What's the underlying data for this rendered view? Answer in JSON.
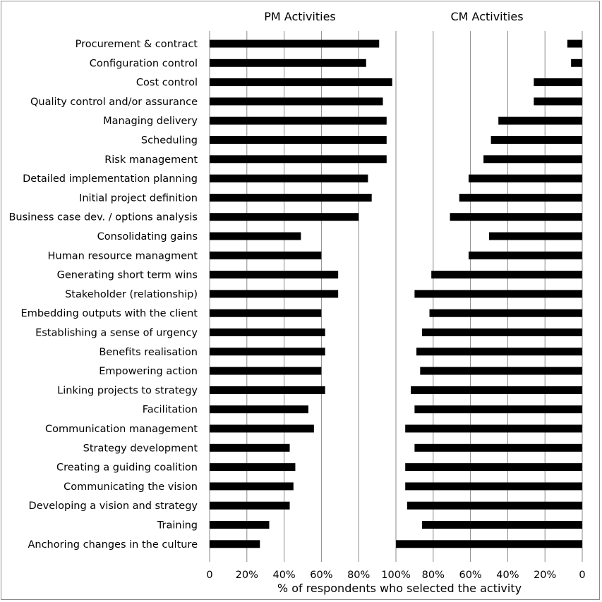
{
  "chart_data": {
    "type": "bar",
    "orientation": "horizontal",
    "layout": "back-to-back",
    "xlabel": "% of respondents who selected the activity",
    "xlim_left": [
      0,
      100
    ],
    "xlim_right": [
      100,
      0
    ],
    "left_tick_labels": [
      "0",
      "20%",
      "40%",
      "60%",
      "80%",
      "100%"
    ],
    "right_tick_labels": [
      "80%",
      "60%",
      "40%",
      "20%",
      "0"
    ],
    "grid": "vertical",
    "bar_color": "#000000",
    "categories": [
      "Procurement & contract",
      "Configuration control",
      "Cost control",
      "Quality control and/or assurance",
      "Managing delivery",
      "Scheduling",
      "Risk management",
      "Detailed implementation planning",
      "Initial project definition",
      "Business case dev. / options analysis",
      "Consolidating gains",
      "Human resource managment",
      "Generating short term wins",
      "Stakeholder (relationship)",
      "Embedding outputs with the client",
      "Establishing a sense of urgency",
      "Benefits realisation",
      "Empowering action",
      "Linking projects to strategy",
      "Facilitation",
      "Communication management",
      "Strategy development",
      "Creating a guiding coalition",
      "Communicating the vision",
      "Developing a vision and strategy",
      "Training",
      "Anchoring changes in the culture"
    ],
    "series": [
      {
        "name": "PM Activities",
        "values": [
          91,
          84,
          98,
          93,
          95,
          95,
          95,
          85,
          87,
          80,
          49,
          60,
          69,
          69,
          60,
          62,
          62,
          60,
          62,
          53,
          56,
          43,
          46,
          45,
          43,
          32,
          27
        ]
      },
      {
        "name": "CM Activities",
        "values": [
          8,
          6,
          26,
          26,
          45,
          49,
          53,
          61,
          66,
          71,
          50,
          61,
          81,
          90,
          82,
          86,
          89,
          87,
          92,
          90,
          95,
          90,
          95,
          95,
          94,
          86,
          100
        ]
      }
    ]
  }
}
